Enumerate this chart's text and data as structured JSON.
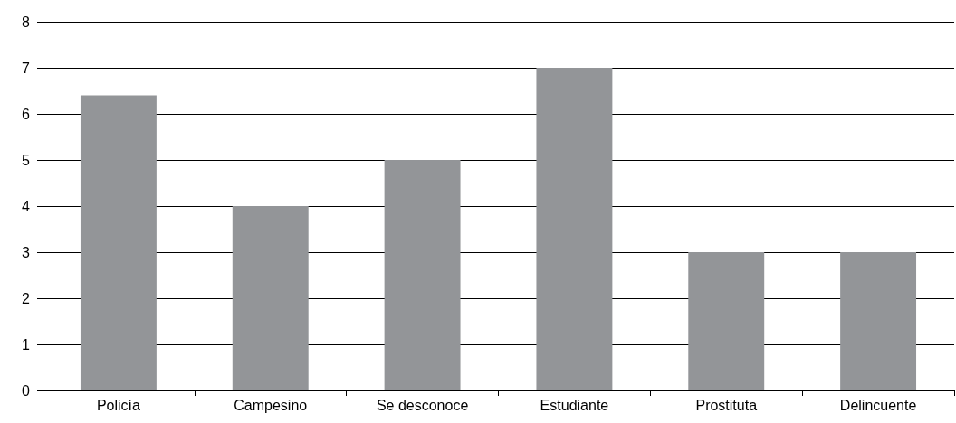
{
  "chart_data": {
    "type": "bar",
    "categories": [
      "Policía",
      "Campesino",
      "Se desconoce",
      "Estudiante",
      "Prostituta",
      "Delincuente"
    ],
    "values": [
      6.4,
      4,
      5,
      7,
      3,
      3
    ],
    "color": "#939598",
    "ylim": [
      0,
      8
    ],
    "yticks": [
      0,
      1,
      2,
      3,
      4,
      5,
      6,
      7,
      8
    ],
    "grid": "y"
  }
}
